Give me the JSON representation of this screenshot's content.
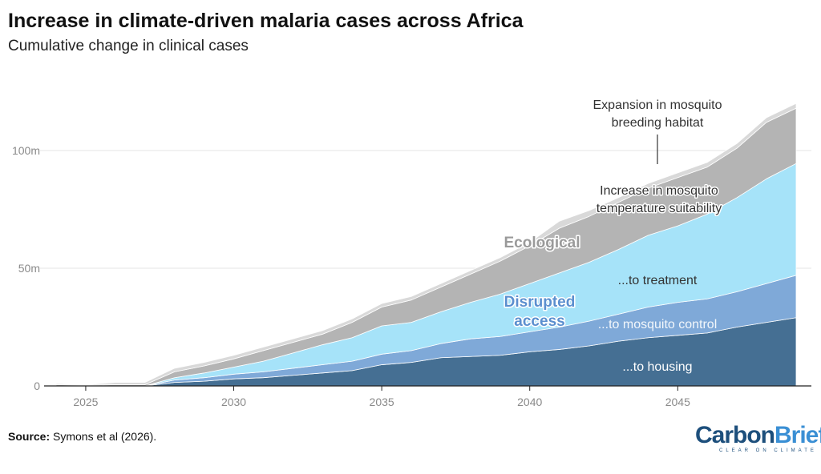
{
  "chart_data": {
    "type": "area",
    "stacked": true,
    "title": "Increase in climate-driven malaria cases across Africa",
    "subtitle": "Cumulative change in clinical cases",
    "xlabel": "",
    "ylabel": "",
    "x": [
      2024,
      2025,
      2026,
      2027,
      2028,
      2029,
      2030,
      2031,
      2032,
      2033,
      2034,
      2035,
      2036,
      2037,
      2038,
      2039,
      2040,
      2041,
      2042,
      2043,
      2044,
      2045,
      2046,
      2047,
      2048,
      2049
    ],
    "xlim": [
      2024,
      2049
    ],
    "ylim": [
      0,
      125
    ],
    "y_unit": "m",
    "x_ticks": [
      "2025",
      "2030",
      "2035",
      "2040",
      "2045"
    ],
    "x_tick_values": [
      2025,
      2030,
      2035,
      2040,
      2045
    ],
    "y_ticks": [
      "0",
      "50m",
      "100m"
    ],
    "y_tick_values": [
      0,
      50,
      100
    ],
    "grid": "horizontal",
    "legend": "none (direct labels)",
    "series": [
      {
        "name": "...to housing",
        "color": "#456f93",
        "values": [
          0,
          0,
          0,
          0,
          1.5,
          2,
          3,
          3.5,
          4.5,
          5.5,
          6.5,
          9,
          10,
          12,
          12.5,
          13,
          14.5,
          15.5,
          17,
          19,
          20.5,
          21.5,
          22.5,
          25,
          27,
          29
        ]
      },
      {
        "name": "...to mosquito control",
        "color": "#7fa9d8",
        "values": [
          0,
          0,
          0,
          0,
          1,
          1.5,
          2,
          2.5,
          3,
          3.5,
          4,
          4.5,
          5,
          6,
          7.5,
          8,
          8.5,
          9.5,
          10.5,
          11.5,
          13,
          14,
          14.5,
          15,
          16.5,
          18
        ]
      },
      {
        "name": "...to treatment",
        "color": "#a6e3f9",
        "values": [
          0,
          0,
          0,
          0,
          1,
          2,
          3,
          4.5,
          6.5,
          8.5,
          10,
          12,
          12,
          13.5,
          15.5,
          18,
          20.5,
          23,
          25,
          27.5,
          30.5,
          32.5,
          36,
          40,
          44.5,
          47.5
        ]
      },
      {
        "name": "Increase in mosquito temperature suitability",
        "color": "#b4b4b4",
        "values": [
          0.5,
          0.3,
          0.5,
          0.5,
          2.5,
          3,
          3.5,
          4.5,
          4.5,
          4.5,
          6.5,
          8,
          9.5,
          10.5,
          12,
          14,
          16,
          19,
          19.5,
          20,
          20,
          20.5,
          20,
          21,
          24,
          23.5
        ]
      },
      {
        "name": "Expansion in mosquito breeding habitat",
        "color": "#d9d9d9",
        "values": [
          0.5,
          0.2,
          1,
          1,
          1.5,
          1.5,
          1.5,
          1.5,
          1.5,
          1.5,
          1.5,
          1.5,
          1.5,
          1.5,
          1.5,
          1.5,
          1.5,
          3,
          2.5,
          2,
          2,
          2,
          2,
          2,
          2,
          2
        ]
      }
    ],
    "annotations": {
      "breeding_line1": "Expansion in mosquito",
      "breeding_line2": "breeding habitat",
      "temperature_line1": "Increase in mosquito",
      "temperature_line2": "temperature suitability",
      "ecological": "Ecological",
      "disrupted_line1": "Disrupted",
      "disrupted_line2": "access",
      "treatment": "...to treatment",
      "control": "...to mosquito control",
      "housing": "...to housing"
    },
    "group_colors": {
      "ecological": "#9a9a9a",
      "disrupted": "#5b8fcf"
    }
  },
  "footer": {
    "source_label": "Source:",
    "source_text": " Symons et al (2026).",
    "logo_part1": "Carbon",
    "logo_part2": "Brief",
    "logo_tagline": "CLEAR ON CLIMATE"
  }
}
